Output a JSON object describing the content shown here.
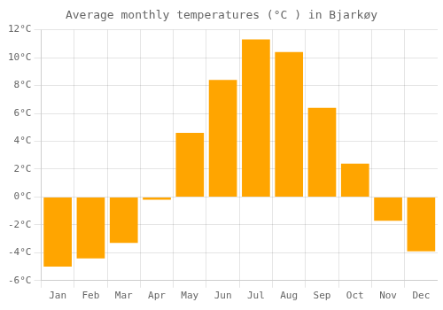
{
  "chart_data": {
    "type": "bar",
    "title": "Average monthly temperatures (°C ) in Bjarkøy",
    "categories": [
      "Jan",
      "Feb",
      "Mar",
      "Apr",
      "May",
      "Jun",
      "Jul",
      "Aug",
      "Sep",
      "Oct",
      "Nov",
      "Dec"
    ],
    "values": [
      -5.0,
      -4.4,
      -3.3,
      -0.2,
      4.6,
      8.4,
      11.3,
      10.4,
      6.4,
      2.4,
      -1.7,
      -3.9
    ],
    "color": "#FFA500",
    "ylim": [
      -6,
      12
    ],
    "yticks": [
      {
        "value": -6,
        "label": "-6°C"
      },
      {
        "value": -4,
        "label": "-4°C"
      },
      {
        "value": -2,
        "label": "-2°C"
      },
      {
        "value": 0,
        "label": "0°C"
      },
      {
        "value": 2,
        "label": "2°C"
      },
      {
        "value": 4,
        "label": "4°C"
      },
      {
        "value": 6,
        "label": "6°C"
      },
      {
        "value": 8,
        "label": "8°C"
      },
      {
        "value": 10,
        "label": "10°C"
      },
      {
        "value": 12,
        "label": "12°C"
      }
    ],
    "grid": true
  }
}
